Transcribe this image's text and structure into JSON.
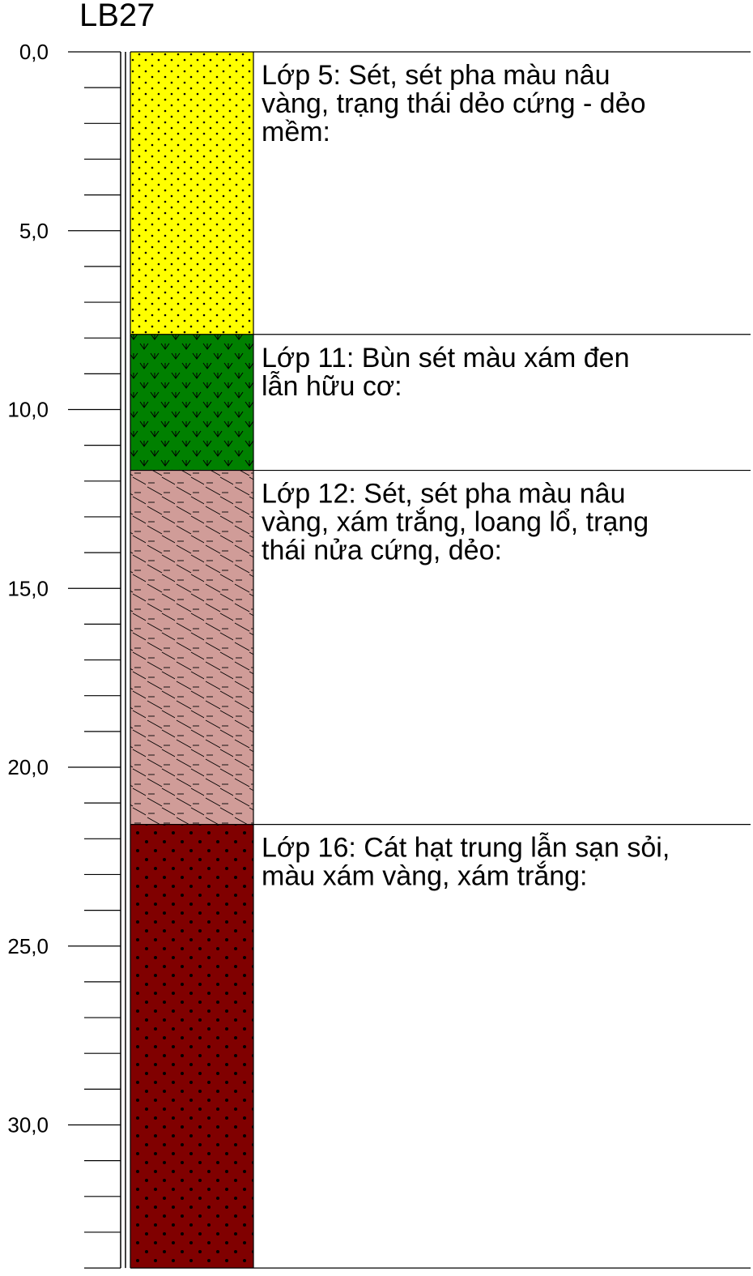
{
  "borehole": {
    "id": "LB27"
  },
  "depth_axis": {
    "min": 0,
    "max": 34,
    "major_step": 5,
    "minor_step": 1,
    "labels": [
      "0,0",
      "5,0",
      "10,0",
      "15,0",
      "20,0",
      "25,0",
      "30,0"
    ]
  },
  "layers": [
    {
      "top": 0,
      "bottom": 7.9,
      "color": "#ffff00",
      "pattern": "fine-dots",
      "lines": [
        "Lớp 5: Sét, sét pha màu nâu",
        "vàng, trạng thái dẻo cứng - dẻo",
        "mềm:"
      ]
    },
    {
      "top": 7.9,
      "bottom": 11.7,
      "color": "#008000",
      "pattern": "organic-v",
      "lines": [
        "Lớp 11: Bùn sét màu xám đen",
        "lẫn hữu cơ:"
      ]
    },
    {
      "top": 11.7,
      "bottom": 21.6,
      "color": "#d09c98",
      "pattern": "clay-dash-diagonal",
      "lines": [
        "Lớp 12: Sét, sét pha màu nâu",
        "vàng, xám trắng, loang lổ, trạng",
        "thái nửa cứng, dẻo:"
      ]
    },
    {
      "top": 21.6,
      "bottom": 34,
      "color": "#800000",
      "pattern": "coarse-dots",
      "lines": [
        "Lớp 16: Cát hạt trung lẫn sạn sỏi,",
        "màu xám vàng, xám trắng:"
      ]
    }
  ]
}
